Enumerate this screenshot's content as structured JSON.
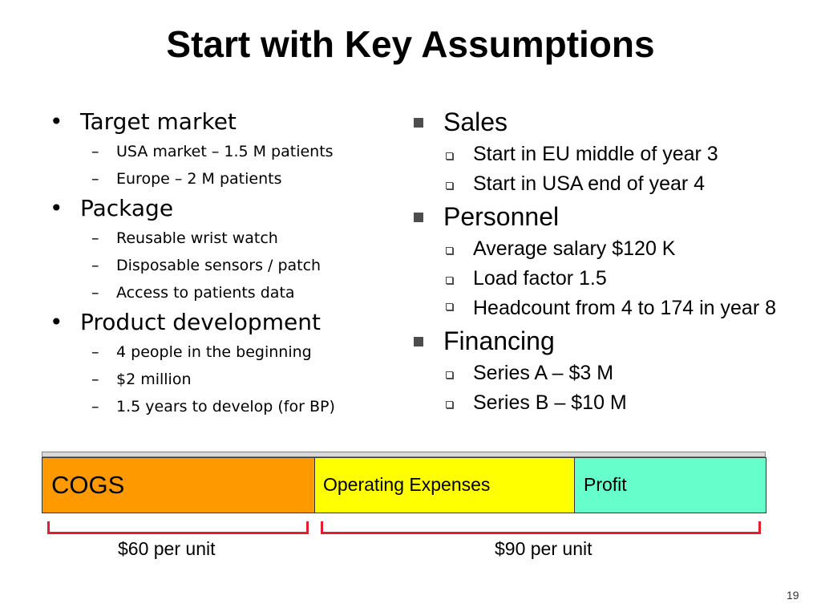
{
  "slide": {
    "title": "Start with Key Assumptions",
    "page_number": "19"
  },
  "left_column": {
    "groups": [
      {
        "label": "Target market",
        "items": [
          "USA market – 1.5 M patients",
          "Europe – 2 M patients"
        ]
      },
      {
        "label": "Package",
        "items": [
          "Reusable wrist watch",
          "Disposable sensors / patch",
          "Access to patients data"
        ]
      },
      {
        "label": "Product development",
        "items": [
          "4 people in the beginning",
          "$2 million",
          "1.5 years to develop (for BP)"
        ]
      }
    ]
  },
  "right_column": {
    "groups": [
      {
        "label": "Sales",
        "items": [
          "Start in EU middle of year 3",
          "Start in USA end of year 4"
        ]
      },
      {
        "label": "Personnel",
        "items": [
          "Average salary $120 K",
          "Load factor 1.5",
          "Headcount from 4 to 174 in year 8"
        ]
      },
      {
        "label": "Financing",
        "items": [
          "Series A – $3 M",
          "Series B – $10 M"
        ]
      }
    ]
  },
  "cost_bar": {
    "segments": [
      {
        "label": "COGS",
        "color": "#ff9900"
      },
      {
        "label": "Operating Expenses",
        "color": "#ffff00"
      },
      {
        "label": "Profit",
        "color": "#66ffcc"
      }
    ],
    "bracket_color": "#e41e2c",
    "brackets": [
      "$60 per unit",
      "$90 per unit"
    ]
  }
}
